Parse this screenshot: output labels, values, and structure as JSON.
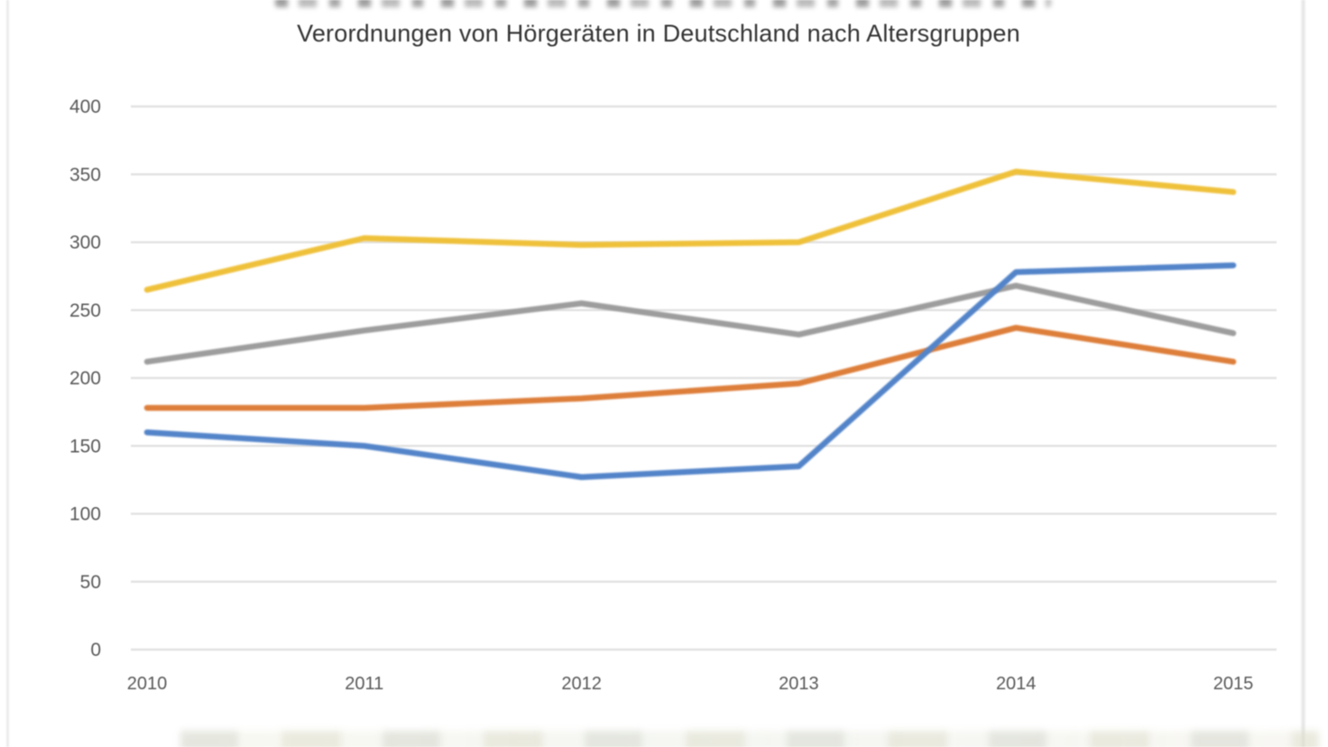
{
  "page": {
    "background": "#ffffff",
    "border_color": "#d9d9d9"
  },
  "chart_data": {
    "type": "line",
    "title": "Verordnungen von Hörgeräten in Deutschland nach Altersgruppen",
    "categories": [
      "2010",
      "2011",
      "2012",
      "2013",
      "2014",
      "2015"
    ],
    "series": [
      {
        "name": "yellow",
        "color": "#EFC13B",
        "values": [
          265,
          303,
          298,
          300,
          352,
          337
        ]
      },
      {
        "name": "gray",
        "color": "#9D9D9D",
        "values": [
          212,
          235,
          255,
          232,
          268,
          233
        ]
      },
      {
        "name": "orange",
        "color": "#DD7E3A",
        "values": [
          178,
          178,
          185,
          196,
          237,
          212
        ]
      },
      {
        "name": "blue",
        "color": "#5384C9",
        "values": [
          160,
          150,
          127,
          135,
          278,
          283
        ]
      }
    ],
    "ylim": [
      0,
      400
    ],
    "ytick_step": 50,
    "yticks": [
      0,
      50,
      100,
      150,
      200,
      250,
      300,
      350,
      400
    ],
    "grid": true,
    "legend_position": "bottom"
  }
}
